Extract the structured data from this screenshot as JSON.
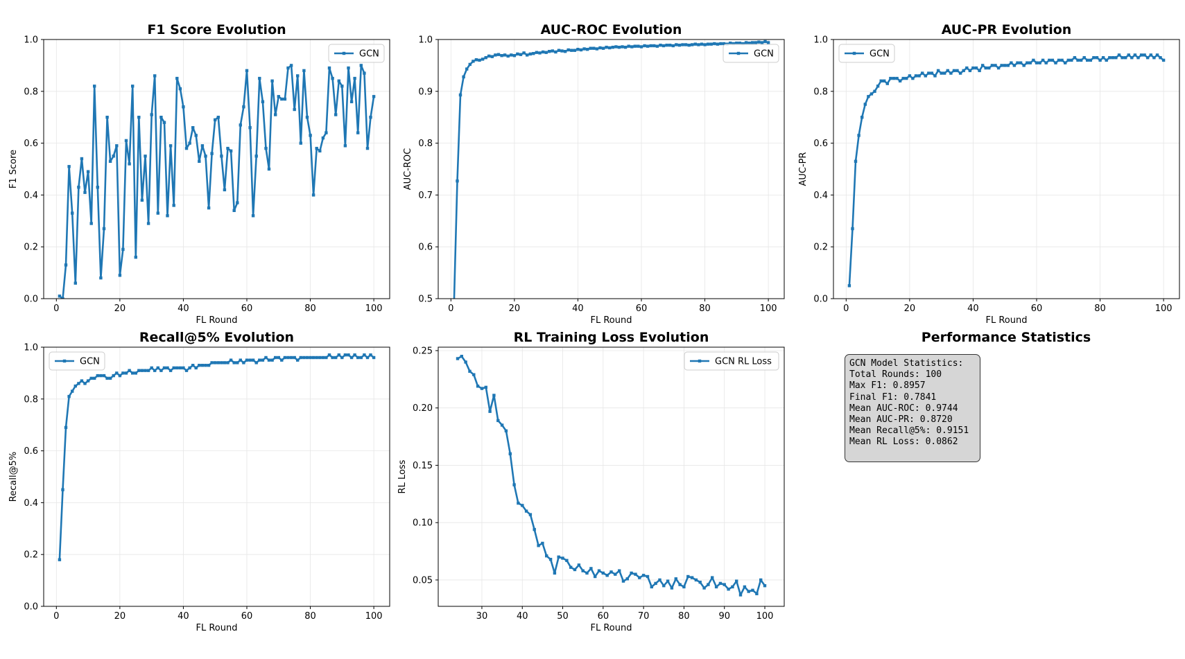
{
  "colors": {
    "series": "#1f77b4",
    "grid": "#e6e6e6",
    "axis": "#000000",
    "statsBox": "#d6d6d6"
  },
  "chart_data": [
    {
      "id": "f1",
      "type": "line",
      "title": "F1 Score Evolution",
      "xlabel": "FL Round",
      "ylabel": "F1 Score",
      "xlim": [
        -4,
        105
      ],
      "ylim": [
        0,
        1
      ],
      "xticks": [
        0,
        20,
        40,
        60,
        80,
        100
      ],
      "yticks": [
        0.0,
        0.2,
        0.4,
        0.6,
        0.8,
        1.0
      ],
      "ytick_labels": [
        "0.0",
        "0.2",
        "0.4",
        "0.6",
        "0.8",
        "1.0"
      ],
      "grid": true,
      "legend": "top-right",
      "marker": "square",
      "series": [
        {
          "name": "GCN",
          "x_start": 1,
          "x_step": 1,
          "values": [
            0.01,
            0.0,
            0.13,
            0.51,
            0.33,
            0.06,
            0.43,
            0.54,
            0.41,
            0.49,
            0.29,
            0.82,
            0.43,
            0.08,
            0.27,
            0.7,
            0.53,
            0.55,
            0.59,
            0.09,
            0.19,
            0.61,
            0.52,
            0.82,
            0.16,
            0.7,
            0.38,
            0.55,
            0.29,
            0.71,
            0.86,
            0.33,
            0.7,
            0.68,
            0.32,
            0.59,
            0.36,
            0.85,
            0.81,
            0.74,
            0.58,
            0.6,
            0.66,
            0.63,
            0.53,
            0.59,
            0.55,
            0.35,
            0.56,
            0.69,
            0.7,
            0.55,
            0.42,
            0.58,
            0.57,
            0.34,
            0.37,
            0.67,
            0.74,
            0.88,
            0.66,
            0.32,
            0.55,
            0.85,
            0.76,
            0.58,
            0.5,
            0.84,
            0.71,
            0.78,
            0.77,
            0.77,
            0.89,
            0.9,
            0.73,
            0.86,
            0.6,
            0.88,
            0.7,
            0.63,
            0.4,
            0.58,
            0.57,
            0.62,
            0.64,
            0.89,
            0.85,
            0.71,
            0.84,
            0.82,
            0.59,
            0.89,
            0.76,
            0.85,
            0.64,
            0.9,
            0.87,
            0.58,
            0.7,
            0.78
          ]
        }
      ]
    },
    {
      "id": "aucroc",
      "type": "line",
      "title": "AUC-ROC Evolution",
      "xlabel": "FL Round",
      "ylabel": "AUC-ROC",
      "xlim": [
        -4,
        105
      ],
      "ylim": [
        0.5,
        1.0
      ],
      "xticks": [
        0,
        20,
        40,
        60,
        80,
        100
      ],
      "yticks": [
        0.5,
        0.6,
        0.7,
        0.8,
        0.9,
        1.0
      ],
      "ytick_labels": [
        "0.5",
        "0.6",
        "0.7",
        "0.8",
        "0.9",
        "1.0"
      ],
      "grid": true,
      "legend": "top-right",
      "marker": "square",
      "series": [
        {
          "name": "GCN",
          "x_start": 1,
          "x_step": 1,
          "values": [
            0.497,
            0.727,
            0.893,
            0.928,
            0.943,
            0.952,
            0.958,
            0.961,
            0.96,
            0.962,
            0.965,
            0.968,
            0.967,
            0.97,
            0.971,
            0.969,
            0.97,
            0.968,
            0.97,
            0.969,
            0.972,
            0.971,
            0.974,
            0.97,
            0.972,
            0.973,
            0.975,
            0.974,
            0.976,
            0.975,
            0.977,
            0.978,
            0.976,
            0.979,
            0.978,
            0.977,
            0.98,
            0.979,
            0.979,
            0.981,
            0.98,
            0.982,
            0.981,
            0.983,
            0.983,
            0.982,
            0.984,
            0.983,
            0.985,
            0.984,
            0.985,
            0.986,
            0.985,
            0.986,
            0.985,
            0.987,
            0.986,
            0.987,
            0.987,
            0.986,
            0.988,
            0.987,
            0.988,
            0.988,
            0.987,
            0.989,
            0.988,
            0.989,
            0.989,
            0.988,
            0.99,
            0.989,
            0.99,
            0.99,
            0.989,
            0.99,
            0.991,
            0.99,
            0.991,
            0.99,
            0.991,
            0.991,
            0.992,
            0.991,
            0.992,
            0.992,
            0.991,
            0.993,
            0.992,
            0.993,
            0.993,
            0.992,
            0.994,
            0.993,
            0.994,
            0.994,
            0.995,
            0.994,
            0.996,
            0.994
          ]
        }
      ]
    },
    {
      "id": "aucpr",
      "type": "line",
      "title": "AUC-PR Evolution",
      "xlabel": "FL Round",
      "ylabel": "AUC-PR",
      "xlim": [
        -4,
        105
      ],
      "ylim": [
        0,
        1
      ],
      "xticks": [
        0,
        20,
        40,
        60,
        80,
        100
      ],
      "yticks": [
        0.0,
        0.2,
        0.4,
        0.6,
        0.8,
        1.0
      ],
      "ytick_labels": [
        "0.0",
        "0.2",
        "0.4",
        "0.6",
        "0.8",
        "1.0"
      ],
      "grid": true,
      "legend": "top-left",
      "marker": "square",
      "series": [
        {
          "name": "GCN",
          "x_start": 1,
          "x_step": 1,
          "values": [
            0.05,
            0.27,
            0.53,
            0.63,
            0.7,
            0.75,
            0.78,
            0.79,
            0.8,
            0.82,
            0.84,
            0.84,
            0.83,
            0.85,
            0.85,
            0.85,
            0.84,
            0.85,
            0.85,
            0.86,
            0.85,
            0.86,
            0.86,
            0.87,
            0.86,
            0.87,
            0.87,
            0.86,
            0.88,
            0.87,
            0.87,
            0.88,
            0.87,
            0.88,
            0.88,
            0.87,
            0.88,
            0.89,
            0.88,
            0.89,
            0.89,
            0.88,
            0.9,
            0.89,
            0.89,
            0.9,
            0.9,
            0.89,
            0.9,
            0.9,
            0.9,
            0.91,
            0.9,
            0.91,
            0.91,
            0.9,
            0.91,
            0.91,
            0.92,
            0.91,
            0.91,
            0.92,
            0.91,
            0.92,
            0.92,
            0.91,
            0.92,
            0.92,
            0.91,
            0.92,
            0.92,
            0.93,
            0.92,
            0.92,
            0.93,
            0.92,
            0.92,
            0.93,
            0.93,
            0.92,
            0.93,
            0.92,
            0.93,
            0.93,
            0.93,
            0.94,
            0.93,
            0.93,
            0.94,
            0.93,
            0.94,
            0.93,
            0.94,
            0.94,
            0.93,
            0.94,
            0.93,
            0.94,
            0.93,
            0.92
          ]
        }
      ]
    },
    {
      "id": "recall",
      "type": "line",
      "title": "Recall@5% Evolution",
      "xlabel": "FL Round",
      "ylabel": "Recall@5%",
      "xlim": [
        -4,
        105
      ],
      "ylim": [
        0,
        1
      ],
      "xticks": [
        0,
        20,
        40,
        60,
        80,
        100
      ],
      "yticks": [
        0.0,
        0.2,
        0.4,
        0.6,
        0.8,
        1.0
      ],
      "ytick_labels": [
        "0.0",
        "0.2",
        "0.4",
        "0.6",
        "0.8",
        "1.0"
      ],
      "grid": true,
      "legend": "top-left",
      "marker": "square",
      "series": [
        {
          "name": "GCN",
          "x_start": 1,
          "x_step": 1,
          "values": [
            0.18,
            0.45,
            0.69,
            0.81,
            0.83,
            0.85,
            0.86,
            0.87,
            0.86,
            0.87,
            0.88,
            0.88,
            0.89,
            0.89,
            0.89,
            0.88,
            0.88,
            0.89,
            0.9,
            0.89,
            0.9,
            0.9,
            0.91,
            0.9,
            0.9,
            0.91,
            0.91,
            0.91,
            0.91,
            0.92,
            0.91,
            0.92,
            0.91,
            0.92,
            0.92,
            0.91,
            0.92,
            0.92,
            0.92,
            0.92,
            0.91,
            0.92,
            0.93,
            0.92,
            0.93,
            0.93,
            0.93,
            0.93,
            0.94,
            0.94,
            0.94,
            0.94,
            0.94,
            0.94,
            0.95,
            0.94,
            0.94,
            0.95,
            0.94,
            0.95,
            0.95,
            0.95,
            0.94,
            0.95,
            0.95,
            0.96,
            0.95,
            0.95,
            0.96,
            0.96,
            0.95,
            0.96,
            0.96,
            0.96,
            0.96,
            0.95,
            0.96,
            0.96,
            0.96,
            0.96,
            0.96,
            0.96,
            0.96,
            0.96,
            0.96,
            0.97,
            0.96,
            0.96,
            0.97,
            0.96,
            0.97,
            0.97,
            0.96,
            0.97,
            0.96,
            0.96,
            0.97,
            0.96,
            0.97,
            0.96
          ]
        }
      ]
    },
    {
      "id": "rlloss",
      "type": "line",
      "title": "RL Training Loss Evolution",
      "xlabel": "FL Round",
      "ylabel": "RL Loss",
      "xlim": [
        19.2,
        104.8
      ],
      "ylim": [
        0.027,
        0.253
      ],
      "xticks": [
        30,
        40,
        50,
        60,
        70,
        80,
        90,
        100
      ],
      "yticks": [
        0.05,
        0.1,
        0.15,
        0.2,
        0.25
      ],
      "ytick_labels": [
        "0.05",
        "0.10",
        "0.15",
        "0.20",
        "0.25"
      ],
      "grid": true,
      "legend": "top-right",
      "marker": "square",
      "series": [
        {
          "name": "GCN RL Loss",
          "x_start": 24,
          "x_step": 1,
          "values": [
            0.243,
            0.245,
            0.24,
            0.232,
            0.229,
            0.219,
            0.217,
            0.218,
            0.197,
            0.211,
            0.189,
            0.185,
            0.18,
            0.16,
            0.133,
            0.117,
            0.115,
            0.11,
            0.107,
            0.094,
            0.08,
            0.082,
            0.071,
            0.068,
            0.056,
            0.07,
            0.069,
            0.067,
            0.061,
            0.059,
            0.063,
            0.058,
            0.056,
            0.06,
            0.053,
            0.058,
            0.056,
            0.054,
            0.057,
            0.055,
            0.058,
            0.049,
            0.051,
            0.056,
            0.055,
            0.052,
            0.054,
            0.053,
            0.044,
            0.047,
            0.05,
            0.045,
            0.049,
            0.043,
            0.051,
            0.046,
            0.044,
            0.053,
            0.052,
            0.05,
            0.048,
            0.043,
            0.046,
            0.052,
            0.044,
            0.047,
            0.046,
            0.042,
            0.044,
            0.049,
            0.037,
            0.044,
            0.04,
            0.041,
            0.038,
            0.05,
            0.045
          ]
        }
      ]
    }
  ],
  "stats": {
    "title": "Performance Statistics",
    "lines": [
      "GCN Model Statistics:",
      "Total Rounds: 100",
      "Max F1: 0.8957",
      "Final F1: 0.7841",
      "Mean AUC-ROC: 0.9744",
      "Mean AUC-PR: 0.8720",
      "Mean Recall@5%: 0.9151",
      "Mean RL Loss: 0.0862"
    ]
  }
}
